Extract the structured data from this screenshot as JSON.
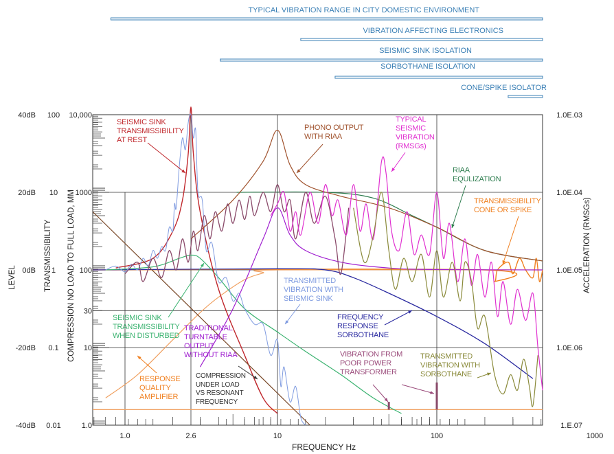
{
  "chart_data": {
    "type": "line",
    "xlabel": "FREQUENCY Hz",
    "x_scale": "log",
    "xlim": [
      0.69,
      460
    ],
    "x_ticks": [
      {
        "label": "1.0",
        "f": 1
      },
      {
        "label": "2.6",
        "f": 2.6
      },
      {
        "label": "10",
        "f": 10
      },
      {
        "label": "100",
        "f": 100
      },
      {
        "label": "1000",
        "f": 1000
      }
    ],
    "y_axes": {
      "level": {
        "title": "LEVEL",
        "ticks": [
          {
            "label": "40dB",
            "db": 40
          },
          {
            "label": "20dB",
            "db": 20
          },
          {
            "label": "0dB",
            "db": 0
          },
          {
            "label": "-20dB",
            "db": -20
          },
          {
            "label": "-40dB",
            "db": -40
          }
        ]
      },
      "transmissibility": {
        "title": "TRANSMISSIBILITY",
        "ticks": [
          {
            "label": "100",
            "db": 40
          },
          {
            "label": "10",
            "db": 20
          },
          {
            "label": "1",
            "db": 0
          },
          {
            "label": "0.1",
            "db": -20
          },
          {
            "label": "0.01",
            "db": -40
          }
        ]
      },
      "compression": {
        "title": "COMPRESSION NO LOAD TO FULL LOAD, MM",
        "ticks": [
          {
            "label": "10,000",
            "db": 40
          },
          {
            "label": "1000",
            "db": 20
          },
          {
            "label": "100",
            "db": 0
          },
          {
            "label": "30",
            "db": -10.5
          },
          {
            "label": "10",
            "db": -20
          },
          {
            "label": "1.0",
            "db": -40
          }
        ]
      },
      "acceleration": {
        "title": "ACCELERATION (RMSGs)",
        "ticks": [
          {
            "label": "1.0E.03",
            "db": 40
          },
          {
            "label": "1.0E.04",
            "db": 20
          },
          {
            "label": "1.0E.05",
            "db": 0
          },
          {
            "label": "1.0E.06",
            "db": -20
          },
          {
            "label": "1.E.07",
            "db": -40
          }
        ]
      }
    },
    "ylim_db": [
      -40,
      40
    ],
    "grid": true,
    "ranges": [
      {
        "label": "TYPICAL VIBRATION RANGE IN CITY DOMESTIC ENVIRONMENT",
        "from": 0.85,
        "to": 460
      },
      {
        "label": "VIBRATION AFFECTING ELECTRONICS",
        "from": 14,
        "to": 460
      },
      {
        "label": "SEISMIC SINK ISOLATION",
        "from": 4.1,
        "to": 460
      },
      {
        "label": "SORBOTHANE ISOLATION",
        "from": 23,
        "to": 460
      },
      {
        "label": "CONE/SPIKE ISOLATOR",
        "from": 280,
        "to": 460
      }
    ],
    "series": [
      {
        "name": "Response quality amplifier",
        "color": "#f0a060",
        "width": 1.2,
        "points": [
          [
            0.8,
            -33
          ],
          [
            1.2,
            -27
          ],
          [
            2,
            -18
          ],
          [
            3,
            -11
          ],
          [
            4,
            -7
          ],
          [
            6,
            -2.5
          ],
          [
            8,
            -0.8
          ],
          [
            10,
            0
          ],
          [
            460,
            0
          ]
        ]
      },
      {
        "name": "Baseline floor",
        "color": "#f0a060",
        "width": 1.2,
        "points": [
          [
            0.69,
            -36
          ],
          [
            460,
            -36
          ]
        ]
      },
      {
        "name": "Transmissibility cone or spike",
        "color": "#f08020",
        "width": 1.4,
        "points": [
          [
            0.69,
            0
          ],
          [
            200,
            0
          ],
          [
            230,
            -3
          ],
          [
            240,
            0
          ],
          [
            280,
            2
          ],
          [
            300,
            -1
          ],
          [
            330,
            3
          ],
          [
            360,
            0
          ],
          [
            400,
            -2
          ],
          [
            420,
            3
          ],
          [
            440,
            -3
          ],
          [
            460,
            0
          ]
        ]
      },
      {
        "name": "Frequency response sorbothane",
        "color": "#2a2aa0",
        "width": 1.3,
        "points": [
          [
            0.69,
            0
          ],
          [
            10,
            0.3
          ],
          [
            20,
            0
          ],
          [
            30,
            -2
          ],
          [
            50,
            -6
          ],
          [
            100,
            -12
          ],
          [
            200,
            -19
          ],
          [
            400,
            -28
          ]
        ]
      },
      {
        "name": "Seismic sink transmissibility when disturbed",
        "color": "#3cb371",
        "width": 1.2,
        "points": [
          [
            0.8,
            0
          ],
          [
            1.5,
            0.8
          ],
          [
            2.2,
            3
          ],
          [
            2.6,
            3.8
          ],
          [
            3,
            3
          ],
          [
            4,
            -2
          ],
          [
            6,
            -10
          ],
          [
            10,
            -16
          ],
          [
            15,
            -21
          ],
          [
            25,
            -27
          ],
          [
            40,
            -33
          ],
          [
            60,
            -37
          ]
        ]
      },
      {
        "name": "Seismic sink transmissibility at rest",
        "color": "#c0282d",
        "width": 1.4,
        "points": [
          [
            0.9,
            0.5
          ],
          [
            1.5,
            3
          ],
          [
            2,
            10
          ],
          [
            2.3,
            18
          ],
          [
            2.5,
            30
          ],
          [
            2.6,
            42
          ],
          [
            2.7,
            30
          ],
          [
            3,
            15
          ],
          [
            4,
            -5
          ],
          [
            6,
            -22
          ],
          [
            8,
            -33
          ],
          [
            10,
            -37
          ]
        ]
      },
      {
        "name": "Compression under load vs resonant frequency",
        "color": "#7a4a2a",
        "width": 1.2,
        "points": [
          [
            0.69,
            15
          ],
          [
            16,
            -40
          ]
        ]
      },
      {
        "name": "Transmitted vibration with seismic sink",
        "color": "#7f9be0",
        "width": 1,
        "points": [
          [
            0.8,
            0
          ],
          [
            0.9,
            1
          ],
          [
            1,
            -0.5
          ],
          [
            1.1,
            1.5
          ],
          [
            1.2,
            0
          ],
          [
            1.3,
            3
          ],
          [
            1.4,
            1
          ],
          [
            1.5,
            5
          ],
          [
            1.6,
            3
          ],
          [
            1.7,
            6
          ],
          [
            1.8,
            5
          ],
          [
            1.9,
            11
          ],
          [
            2,
            10
          ],
          [
            2.05,
            17
          ],
          [
            2.1,
            16
          ],
          [
            2.2,
            27
          ],
          [
            2.3,
            34
          ],
          [
            2.4,
            31
          ],
          [
            2.5,
            38
          ],
          [
            2.6,
            40
          ],
          [
            2.7,
            34
          ],
          [
            2.8,
            36
          ],
          [
            2.9,
            20
          ],
          [
            3.1,
            18
          ],
          [
            3.3,
            5
          ],
          [
            3.6,
            7
          ],
          [
            4,
            -3
          ],
          [
            4.5,
            -2
          ],
          [
            5,
            -8
          ],
          [
            5.5,
            -6
          ],
          [
            6,
            -10
          ],
          [
            7,
            -14
          ],
          [
            8,
            -14
          ],
          [
            9,
            -22
          ],
          [
            10,
            -18
          ],
          [
            10.5,
            -30
          ],
          [
            11,
            -25
          ],
          [
            12,
            -34
          ],
          [
            13,
            -30
          ],
          [
            14,
            -38
          ],
          [
            15,
            -40
          ]
        ]
      },
      {
        "name": "Traditional turntable output without RIAA",
        "color": "#a020d0",
        "width": 1.2,
        "points": [
          [
            3,
            -25
          ],
          [
            5,
            -10
          ],
          [
            8,
            8
          ],
          [
            10,
            16
          ],
          [
            12,
            9
          ],
          [
            15,
            5
          ],
          [
            25,
            2
          ],
          [
            50,
            0.5
          ],
          [
            100,
            0.1
          ],
          [
            460,
            0
          ]
        ]
      },
      {
        "name": "RIAA equlization",
        "color": "#2e7d4f",
        "width": 1.2,
        "points": [
          [
            5.3,
            20
          ],
          [
            20,
            20
          ],
          [
            40,
            18.5
          ],
          [
            70,
            14
          ],
          [
            100,
            11
          ],
          [
            200,
            5
          ],
          [
            460,
            2.3
          ]
        ]
      },
      {
        "name": "Phono output with RIAA",
        "color": "#a0522d",
        "width": 1.2,
        "points": [
          [
            2.6,
            8
          ],
          [
            5,
            18
          ],
          [
            8,
            28
          ],
          [
            10,
            36
          ],
          [
            12,
            27
          ],
          [
            15,
            22
          ],
          [
            25,
            19
          ],
          [
            50,
            16
          ],
          [
            100,
            11
          ],
          [
            200,
            5
          ],
          [
            460,
            2.3
          ]
        ]
      },
      {
        "name": "Low frequency seismic vibration",
        "color": "#8a4a6a",
        "width": 1.3,
        "points": [
          [
            1,
            -1
          ],
          [
            1.2,
            2
          ],
          [
            1.3,
            -3
          ],
          [
            1.5,
            3
          ],
          [
            1.7,
            -2
          ],
          [
            1.9,
            5
          ],
          [
            2.1,
            0
          ],
          [
            2.3,
            8
          ],
          [
            2.5,
            2
          ],
          [
            2.7,
            10
          ],
          [
            2.9,
            5
          ],
          [
            3.2,
            14
          ],
          [
            3.5,
            8
          ],
          [
            3.8,
            15
          ],
          [
            4.2,
            10
          ],
          [
            4.6,
            17
          ],
          [
            5,
            12
          ],
          [
            5.5,
            18
          ],
          [
            6,
            13
          ],
          [
            6.5,
            19
          ],
          [
            7,
            14
          ],
          [
            8,
            20
          ],
          [
            9,
            15
          ],
          [
            10,
            22
          ],
          [
            11,
            15
          ],
          [
            12,
            18
          ],
          [
            13,
            8
          ],
          [
            15,
            20
          ],
          [
            17,
            12
          ],
          [
            20,
            19
          ],
          [
            23,
            8
          ],
          [
            25,
            -1
          ],
          [
            28,
            16
          ]
        ]
      },
      {
        "name": "Typical seismic vibration (RMSGs)",
        "color": "#e030d0",
        "width": 1.2,
        "points": [
          [
            9,
            14
          ],
          [
            10,
            17
          ],
          [
            11,
            20
          ],
          [
            12,
            10
          ],
          [
            13,
            15
          ],
          [
            14,
            9
          ],
          [
            16,
            20
          ],
          [
            18,
            12
          ],
          [
            20,
            22
          ],
          [
            22,
            14
          ],
          [
            24,
            18
          ],
          [
            27,
            9
          ],
          [
            30,
            22
          ],
          [
            33,
            10
          ],
          [
            36,
            17
          ],
          [
            40,
            8
          ],
          [
            45,
            28
          ],
          [
            48,
            25
          ],
          [
            52,
            10
          ],
          [
            58,
            5
          ],
          [
            65,
            15
          ],
          [
            72,
            4
          ],
          [
            80,
            9
          ],
          [
            90,
            4
          ],
          [
            100,
            20
          ],
          [
            110,
            3
          ],
          [
            120,
            12
          ],
          [
            135,
            -3
          ],
          [
            150,
            8
          ],
          [
            165,
            -4
          ],
          [
            180,
            4
          ],
          [
            200,
            -7
          ],
          [
            220,
            2
          ],
          [
            240,
            -12
          ],
          [
            260,
            -3
          ],
          [
            290,
            -14
          ],
          [
            320,
            -5
          ],
          [
            360,
            -13
          ],
          [
            400,
            -6
          ],
          [
            430,
            -20
          ],
          [
            460,
            -31
          ]
        ]
      },
      {
        "name": "Transmitted vibration with sorbothane",
        "color": "#8a8a3a",
        "width": 1.2,
        "points": [
          [
            30,
            16
          ],
          [
            35,
            2
          ],
          [
            40,
            9
          ],
          [
            45,
            20
          ],
          [
            50,
            5
          ],
          [
            55,
            -5
          ],
          [
            62,
            3
          ],
          [
            70,
            -3
          ],
          [
            80,
            4
          ],
          [
            90,
            -7
          ],
          [
            100,
            5
          ],
          [
            110,
            -7
          ],
          [
            125,
            2
          ],
          [
            140,
            -8
          ],
          [
            150,
            2
          ],
          [
            165,
            -3
          ],
          [
            180,
            -15
          ],
          [
            200,
            -12
          ],
          [
            230,
            -27
          ],
          [
            260,
            -32
          ],
          [
            290,
            -27
          ],
          [
            320,
            -31
          ],
          [
            350,
            -23
          ],
          [
            380,
            -30
          ],
          [
            400,
            -35
          ],
          [
            430,
            -22
          ]
        ]
      }
    ],
    "spikes": [
      {
        "name": "Transformer 50Hz",
        "f": 50,
        "db": -34,
        "color": "#8a4a6a"
      },
      {
        "name": "Transformer 100Hz",
        "f": 100,
        "db": -29,
        "color": "#8a4a6a"
      }
    ],
    "annotations": [
      {
        "text": "SEISMIC SINK\nTRANSMISSIBILITY\nAT REST",
        "color": "#c0282d"
      },
      {
        "text": "PHONO OUTPUT\nWITH RIAA",
        "color": "#a0522d"
      },
      {
        "text": "TYPICAL\nSEISMIC\nVIBRATION\n(RMSGs)",
        "color": "#e030d0"
      },
      {
        "text": "RIAA\nEQULIZATION",
        "color": "#2e7d4f"
      },
      {
        "text": "TRANSMISSIBILITY\nCONE OR SPIKE",
        "color": "#f08020"
      },
      {
        "text": "TRANSMITTED\nVIBRATION WITH\nSEISMIC SINK",
        "color": "#7f9be0"
      },
      {
        "text": "FREQUENCY\nRESPONSE\nSORBOTHANE",
        "color": "#2a2aa0"
      },
      {
        "text": "SEISMIC SINK\nTRANSMISSIBILITY\nWHEN DISTURBED",
        "color": "#3cb371"
      },
      {
        "text": "TRADITIONAL\nTURNTABLE\nOUTPUT\nWITHOUT RIAA",
        "color": "#a020d0"
      },
      {
        "text": "RESPONSE\nQUALITY\nAMPLIFIER",
        "color": "#f08020"
      },
      {
        "text": "COMPRESSION\nUNDER LOAD\nVS RESONANT\nFREQUENCY",
        "color": "#333333"
      },
      {
        "text": "VIBRATION FROM\nPOOR POWER\nTRANSFORMER",
        "color": "#9a4a7a"
      },
      {
        "text": "TRANSMITTED\nVIBRATION WITH\nSORBOTHANE",
        "color": "#8a8a3a"
      }
    ]
  }
}
